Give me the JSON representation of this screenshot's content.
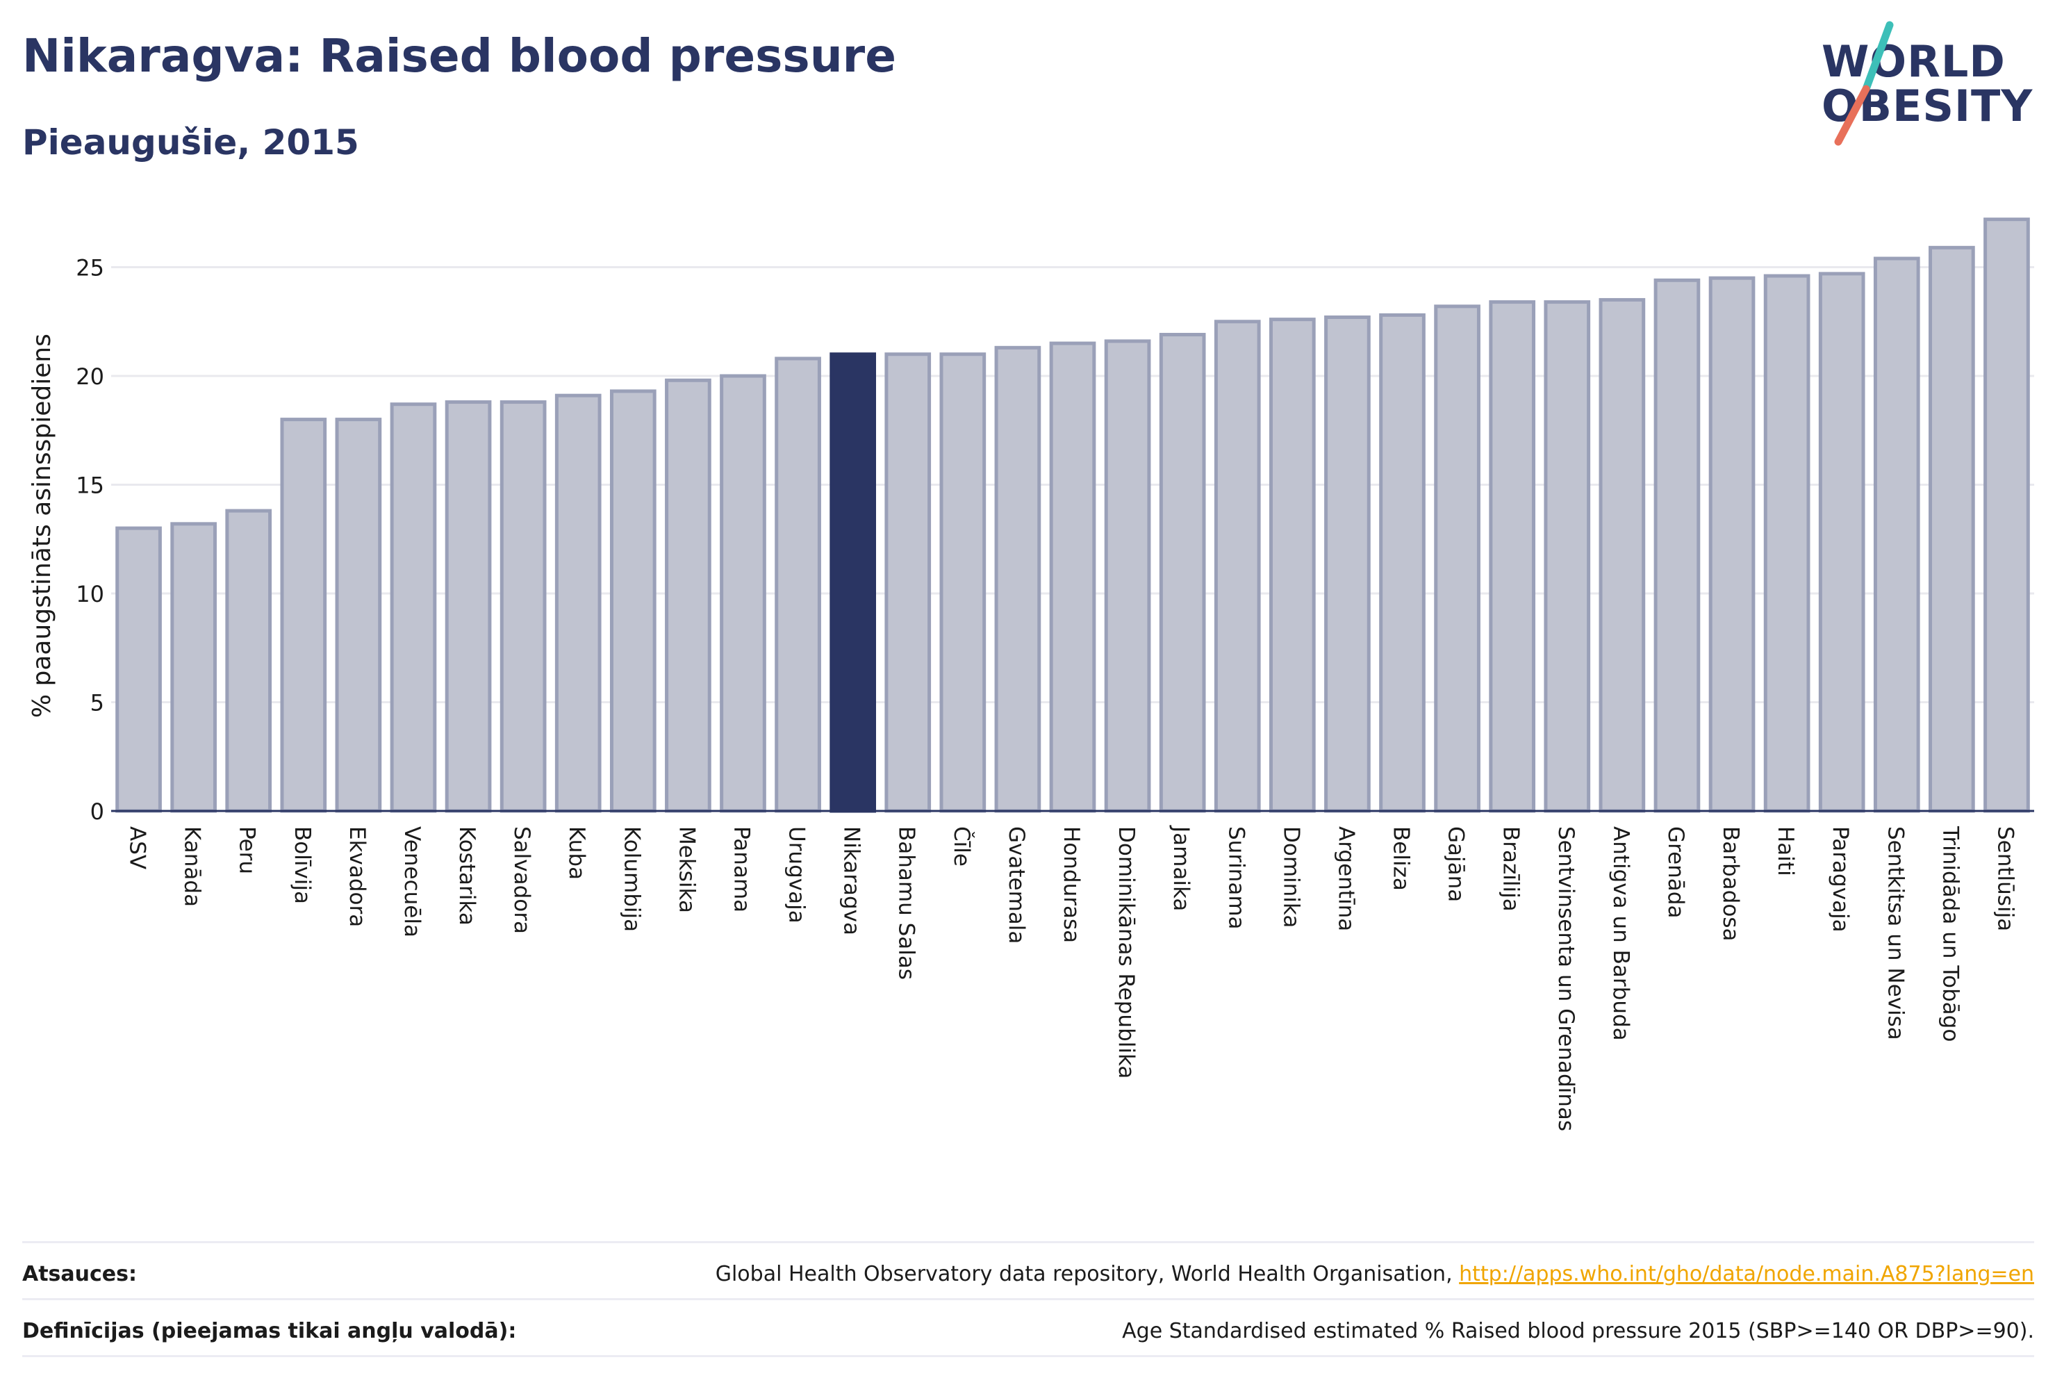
{
  "header": {
    "title": "Nikaragva: Raised blood pressure",
    "subtitle": "Pieaugušie, 2015"
  },
  "logo": {
    "line1": "WORLD",
    "line2": "OBESITY",
    "slash_colors": [
      "#3dbfb8",
      "#e8705a"
    ]
  },
  "colors": {
    "bar_default": "#c0c3d0",
    "bar_default_border": "#9aa0b8",
    "bar_highlight": "#2a3563",
    "text_primary": "#2a3563",
    "link": "#f0a500"
  },
  "chart_data": {
    "type": "bar",
    "ylabel": "% paaugstināts asinsspiediens",
    "ylim": [
      0,
      27.5
    ],
    "yticks": [
      0,
      5,
      10,
      15,
      20,
      25
    ],
    "grid": true,
    "highlight": "Nikaragva",
    "categories": [
      "ASV",
      "Kanāda",
      "Peru",
      "Bolīvija",
      "Ekvadora",
      "Venecuēla",
      "Kostarika",
      "Salvadora",
      "Kuba",
      "Kolumbija",
      "Meksika",
      "Panama",
      "Urugvaja",
      "Nikaragva",
      "Bahamu Salas",
      "Čīle",
      "Gvatemala",
      "Hondurasa",
      "Dominikānas Republika",
      "Jamaika",
      "Surinama",
      "Dominika",
      "Argentīna",
      "Beliza",
      "Gajāna",
      "Brazīlija",
      "Sentvinsenta un Grenadīnas",
      "Antigva un Barbuda",
      "Grenāda",
      "Barbadosa",
      "Haiti",
      "Paragvaja",
      "Sentkitsa un Nevisa",
      "Trinidāda un Tobāgo",
      "Sentlūsija"
    ],
    "values": [
      13.0,
      13.2,
      13.8,
      18.0,
      18.0,
      18.7,
      18.8,
      18.8,
      19.1,
      19.3,
      19.8,
      20.0,
      20.8,
      21.0,
      21.0,
      21.0,
      21.3,
      21.5,
      21.6,
      21.9,
      22.5,
      22.6,
      22.7,
      22.8,
      23.2,
      23.4,
      23.4,
      23.5,
      24.4,
      24.5,
      24.6,
      24.7,
      25.4,
      25.9,
      27.2
    ]
  },
  "footer": {
    "sources_label": "Atsauces:",
    "sources_text": "Global Health Observatory data repository, World Health Organisation, ",
    "sources_link": "http://apps.who.int/gho/data/node.main.A875?lang=en",
    "definitions_label": "Definīcijas (pieejamas tikai angļu valodā):",
    "definitions_text": "Age Standardised estimated % Raised blood pressure 2015 (SBP>=140 OR DBP>=90)."
  }
}
